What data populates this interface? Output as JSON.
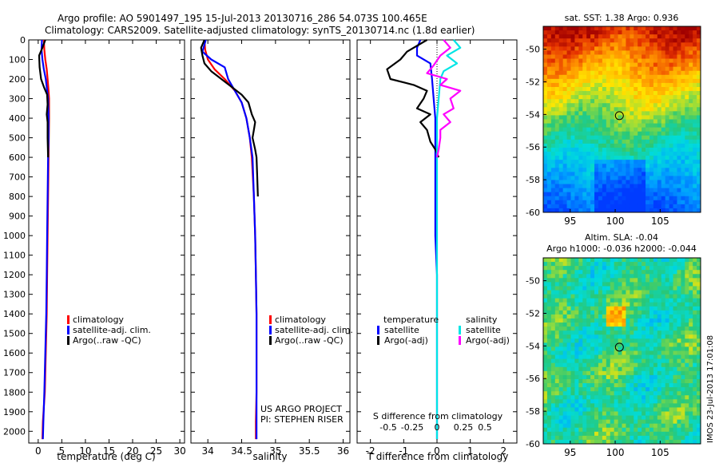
{
  "header": {
    "title_line1": "Argo profile: AO 5901497_195 15-Jul-2013 20130716_286 54.073S 100.465E",
    "title_line2": "Climatology: CARS2009. Satellite-adjusted climatology: synTS_20130714.nc (1.8d earlier)"
  },
  "colors": {
    "climatology": "#ff0000",
    "satellite": "#0000ff",
    "argo": "#000000",
    "sal_satellite": "#00e5e5",
    "sal_argo": "#ff00ff"
  },
  "chart_data": [
    {
      "type": "line",
      "id": "temperature",
      "xlabel": "temperature (deg C)",
      "ylabel": "",
      "xlim": [
        -2,
        31
      ],
      "ylim": [
        2060,
        0
      ],
      "xticks": [
        0,
        5,
        10,
        15,
        20,
        25,
        30
      ],
      "yticks": [
        0,
        100,
        200,
        300,
        400,
        500,
        600,
        700,
        800,
        900,
        1000,
        1100,
        1200,
        1300,
        1400,
        1500,
        1600,
        1700,
        1800,
        1900,
        2000
      ],
      "legend": [
        "climatology",
        "satellite-adj. clim.",
        "Argo(..raw -QC)"
      ],
      "series": [
        {
          "name": "climatology",
          "color": "#ff0000",
          "points": [
            [
              1.2,
              0
            ],
            [
              1.3,
              50
            ],
            [
              1.5,
              100
            ],
            [
              1.8,
              150
            ],
            [
              2.0,
              200
            ],
            [
              2.2,
              260
            ],
            [
              2.3,
              300
            ],
            [
              2.3,
              400
            ],
            [
              2.25,
              500
            ],
            [
              2.2,
              600
            ],
            [
              2.1,
              800
            ],
            [
              2.0,
              1000
            ],
            [
              1.9,
              1200
            ],
            [
              1.8,
              1400
            ],
            [
              1.6,
              1600
            ],
            [
              1.4,
              1800
            ],
            [
              1.0,
              1950
            ],
            [
              0.9,
              2040
            ]
          ]
        },
        {
          "name": "satellite-adj. clim.",
          "color": "#0000ff",
          "points": [
            [
              0.8,
              0
            ],
            [
              0.7,
              50
            ],
            [
              0.9,
              100
            ],
            [
              1.2,
              150
            ],
            [
              1.6,
              200
            ],
            [
              1.9,
              260
            ],
            [
              2.1,
              300
            ],
            [
              2.2,
              400
            ],
            [
              2.2,
              500
            ],
            [
              2.1,
              600
            ],
            [
              2.0,
              800
            ],
            [
              1.9,
              1000
            ],
            [
              1.8,
              1200
            ],
            [
              1.7,
              1400
            ],
            [
              1.5,
              1600
            ],
            [
              1.3,
              1800
            ],
            [
              1.1,
              1950
            ],
            [
              1.0,
              2040
            ]
          ]
        },
        {
          "name": "Argo(..raw -QC)",
          "color": "#000000",
          "points": [
            [
              1.5,
              0
            ],
            [
              0.9,
              40
            ],
            [
              0.2,
              80
            ],
            [
              0.3,
              140
            ],
            [
              0.6,
              200
            ],
            [
              1.2,
              240
            ],
            [
              1.9,
              280
            ],
            [
              2.0,
              330
            ],
            [
              1.8,
              380
            ],
            [
              2.0,
              420
            ],
            [
              2.0,
              500
            ],
            [
              2.1,
              600
            ]
          ]
        }
      ]
    },
    {
      "type": "line",
      "id": "salinity",
      "xlabel": "salinity",
      "ylabel": "",
      "xlim": [
        33.75,
        36.1
      ],
      "ylim": [
        2060,
        0
      ],
      "xticks": [
        34,
        34.5,
        35,
        35.5,
        36
      ],
      "xticklabels": [
        "34",
        "34.5",
        "35",
        "35.5",
        "36"
      ],
      "legend": [
        "climatology",
        "satellite-adj. clim.",
        "Argo(..raw -QC)"
      ],
      "series": [
        {
          "name": "climatology",
          "color": "#ff0000",
          "points": [
            [
              33.95,
              0
            ],
            [
              33.96,
              50
            ],
            [
              34.0,
              100
            ],
            [
              34.1,
              150
            ],
            [
              34.25,
              200
            ],
            [
              34.4,
              260
            ],
            [
              34.5,
              320
            ],
            [
              34.57,
              400
            ],
            [
              34.62,
              500
            ],
            [
              34.65,
              600
            ],
            [
              34.68,
              800
            ],
            [
              34.7,
              1000
            ],
            [
              34.71,
              1200
            ],
            [
              34.72,
              1400
            ],
            [
              34.72,
              1600
            ],
            [
              34.72,
              1800
            ],
            [
              34.71,
              1950
            ],
            [
              34.71,
              2040
            ]
          ]
        },
        {
          "name": "satellite-adj. clim.",
          "color": "#0000ff",
          "points": [
            [
              33.97,
              0
            ],
            [
              33.92,
              60
            ],
            [
              34.05,
              100
            ],
            [
              34.25,
              140
            ],
            [
              34.3,
              200
            ],
            [
              34.4,
              260
            ],
            [
              34.5,
              320
            ],
            [
              34.57,
              400
            ],
            [
              34.62,
              500
            ],
            [
              34.66,
              600
            ],
            [
              34.68,
              800
            ],
            [
              34.7,
              1000
            ],
            [
              34.71,
              1200
            ],
            [
              34.72,
              1400
            ],
            [
              34.72,
              1600
            ],
            [
              34.72,
              1800
            ],
            [
              34.72,
              1950
            ],
            [
              34.72,
              2040
            ]
          ]
        },
        {
          "name": "Argo(..raw -QC)",
          "color": "#000000",
          "points": [
            [
              33.95,
              0
            ],
            [
              33.9,
              40
            ],
            [
              33.92,
              80
            ],
            [
              33.95,
              120
            ],
            [
              34.05,
              160
            ],
            [
              34.2,
              200
            ],
            [
              34.35,
              240
            ],
            [
              34.5,
              280
            ],
            [
              34.6,
              320
            ],
            [
              34.65,
              380
            ],
            [
              34.7,
              420
            ],
            [
              34.68,
              460
            ],
            [
              34.66,
              500
            ],
            [
              34.7,
              560
            ],
            [
              34.72,
              600
            ],
            [
              34.73,
              700
            ],
            [
              34.74,
              800
            ]
          ]
        }
      ]
    },
    {
      "type": "line",
      "id": "differences",
      "xlabel": "T difference from climatology",
      "xlabel_top": "S difference from climatology",
      "ylabel": "",
      "xlim": [
        -2.4,
        2.4
      ],
      "ylim": [
        2060,
        0
      ],
      "xticks": [
        -2,
        -1,
        0,
        1,
        2
      ],
      "top_ticks": [
        "-0.5",
        "-0.25",
        "0",
        "0.25",
        "0.5"
      ],
      "legend_temperature_title": "temperature",
      "legend_salinity_title": "salinity",
      "legend": [
        "satellite",
        "Argo(-adj)",
        "satellite",
        "Argo(-adj)"
      ],
      "series": [
        {
          "name": "temperature satellite",
          "color": "#0000ff",
          "points": [
            [
              -0.5,
              0
            ],
            [
              -0.6,
              40
            ],
            [
              -0.6,
              80
            ],
            [
              -0.2,
              120
            ],
            [
              -0.15,
              200
            ],
            [
              -0.1,
              300
            ],
            [
              -0.05,
              400
            ],
            [
              -0.05,
              500
            ],
            [
              -0.05,
              600
            ],
            [
              -0.05,
              800
            ],
            [
              -0.05,
              1000
            ],
            [
              0,
              1200
            ],
            [
              0,
              1500
            ],
            [
              0,
              1800
            ],
            [
              0,
              2040
            ]
          ]
        },
        {
          "name": "temperature Argo(-adj)",
          "color": "#000000",
          "points": [
            [
              -0.3,
              0
            ],
            [
              -0.9,
              60
            ],
            [
              -1.1,
              100
            ],
            [
              -1.5,
              150
            ],
            [
              -1.4,
              200
            ],
            [
              -0.7,
              230
            ],
            [
              -0.3,
              260
            ],
            [
              -0.4,
              300
            ],
            [
              -0.6,
              350
            ],
            [
              -0.2,
              380
            ],
            [
              -0.5,
              420
            ],
            [
              -0.3,
              460
            ],
            [
              -0.2,
              520
            ],
            [
              -0.05,
              560
            ],
            [
              0.05,
              600
            ]
          ]
        },
        {
          "name": "salinity satellite",
          "color": "#00e5e5",
          "points": [
            [
              0.5,
              0
            ],
            [
              0.7,
              40
            ],
            [
              0.3,
              80
            ],
            [
              0.6,
              120
            ],
            [
              0.2,
              160
            ],
            [
              0.1,
              200
            ],
            [
              0.05,
              300
            ],
            [
              0,
              400
            ],
            [
              0,
              500
            ],
            [
              0,
              800
            ],
            [
              0,
              1000
            ],
            [
              0,
              1500
            ],
            [
              0,
              1800
            ],
            [
              0,
              2040
            ]
          ]
        },
        {
          "name": "salinity Argo(-adj)",
          "color": "#ff00ff",
          "points": [
            [
              0.2,
              0
            ],
            [
              0.4,
              40
            ],
            [
              0.1,
              80
            ],
            [
              -0.1,
              130
            ],
            [
              -0.3,
              170
            ],
            [
              0.3,
              200
            ],
            [
              0.1,
              230
            ],
            [
              0.7,
              260
            ],
            [
              0.4,
              300
            ],
            [
              0.5,
              350
            ],
            [
              0.2,
              380
            ],
            [
              0.4,
              420
            ],
            [
              0.1,
              460
            ],
            [
              0.1,
              500
            ],
            [
              0.05,
              560
            ],
            [
              0,
              600
            ]
          ]
        }
      ]
    },
    {
      "type": "heatmap",
      "id": "sst-map",
      "title": "sat. SST: 1.38 Argo: 0.936",
      "xlim": [
        92,
        109.5
      ],
      "ylim": [
        -60,
        -48.6
      ],
      "xticks": [
        95,
        100,
        105
      ],
      "yticks": [
        -50,
        -52,
        -54,
        -56,
        -58,
        -60
      ],
      "marker": {
        "lon": 100.465,
        "lat": -54.073
      }
    },
    {
      "type": "heatmap",
      "id": "sla-map",
      "title_line1": "Altim. SLA: -0.04",
      "title_line2": "Argo h1000: -0.036 h2000: -0.044",
      "xlim": [
        92,
        109.5
      ],
      "ylim": [
        -60,
        -48.6
      ],
      "xticks": [
        95,
        100,
        105
      ],
      "yticks": [
        -50,
        -52,
        -54,
        -56,
        -58,
        -60
      ],
      "marker": {
        "lon": 100.465,
        "lat": -54.073
      }
    }
  ],
  "annotations": {
    "project_line1": "US ARGO PROJECT",
    "project_line2": "PI: STEPHEN RISER",
    "imos_stamp": "IMOS 23-Jul-2013 17:01:08"
  }
}
